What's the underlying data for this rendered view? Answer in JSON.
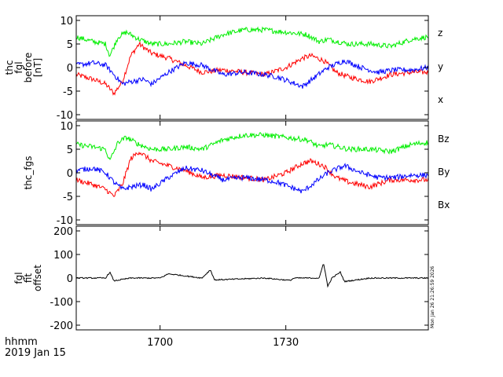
{
  "chart_data": [
    {
      "type": "line",
      "ylabel_lines": [
        "thc",
        "fgl",
        "before",
        "[nT]"
      ],
      "ylim": [
        -11,
        11
      ],
      "yticks": [
        -10,
        -5,
        0,
        5,
        10
      ],
      "xlim": [
        "16:40",
        "18:04"
      ],
      "series": [
        {
          "name": "z",
          "color": "#ff0000",
          "x": [
            "16:40",
            "16:44",
            "16:47",
            "16:49",
            "16:51",
            "16:53",
            "16:55",
            "16:58",
            "17:02",
            "17:06",
            "17:10",
            "17:15",
            "17:20",
            "17:25",
            "17:30",
            "17:34",
            "17:36",
            "17:39",
            "17:42",
            "17:45",
            "17:50",
            "17:55",
            "18:00",
            "18:04"
          ],
          "values": [
            -1.5,
            -2.5,
            -3.5,
            -5.5,
            -3.0,
            2.5,
            5.0,
            3.0,
            2.0,
            0.5,
            -1.0,
            -0.5,
            -1.0,
            -1.5,
            0.0,
            2.0,
            2.5,
            1.5,
            -1.0,
            -2.0,
            -3.0,
            -1.5,
            -1.0,
            -1.0
          ]
        },
        {
          "name": "y",
          "color": "#00ee00",
          "x": [
            "16:40",
            "16:44",
            "16:47",
            "16:48",
            "16:50",
            "16:52",
            "16:55",
            "16:58",
            "17:02",
            "17:06",
            "17:10",
            "17:15",
            "17:20",
            "17:25",
            "17:30",
            "17:35",
            "17:38",
            "17:40",
            "17:45",
            "17:50",
            "17:55",
            "18:00",
            "18:04"
          ],
          "values": [
            6.5,
            5.5,
            5.0,
            2.5,
            6.5,
            7.5,
            6.0,
            5.0,
            5.0,
            5.5,
            5.0,
            7.0,
            8.0,
            8.0,
            7.5,
            7.0,
            5.5,
            6.0,
            5.0,
            5.0,
            4.5,
            6.0,
            6.5
          ]
        },
        {
          "name": "x",
          "color": "#0000ff",
          "x": [
            "16:40",
            "16:44",
            "16:47",
            "16:49",
            "16:51",
            "16:53",
            "16:56",
            "16:58",
            "17:02",
            "17:06",
            "17:10",
            "17:15",
            "17:20",
            "17:25",
            "17:28",
            "17:31",
            "17:34",
            "17:37",
            "17:40",
            "17:44",
            "17:48",
            "17:52",
            "17:56",
            "18:00",
            "18:04"
          ],
          "values": [
            0.5,
            1.0,
            0.5,
            -1.5,
            -3.5,
            -3.0,
            -2.5,
            -3.5,
            -1.0,
            1.0,
            0.5,
            -1.5,
            -1.0,
            -1.5,
            -2.0,
            -3.0,
            -4.0,
            -2.0,
            0.0,
            1.5,
            0.0,
            -1.0,
            -0.5,
            -0.5,
            0.0
          ]
        }
      ]
    },
    {
      "type": "line",
      "ylabel_lines": [
        "thc_fgs"
      ],
      "ylim": [
        -11,
        11
      ],
      "yticks": [
        -10,
        -5,
        0,
        5,
        10
      ],
      "xlim": [
        "16:40",
        "18:04"
      ],
      "series": [
        {
          "name": "Bz",
          "color": "#ff0000",
          "x": [
            "16:40",
            "16:44",
            "16:47",
            "16:49",
            "16:51",
            "16:53",
            "16:55",
            "16:58",
            "17:02",
            "17:06",
            "17:10",
            "17:15",
            "17:20",
            "17:25",
            "17:30",
            "17:34",
            "17:36",
            "17:39",
            "17:42",
            "17:45",
            "17:50",
            "17:55",
            "18:00",
            "18:04"
          ],
          "values": [
            -1.5,
            -2.5,
            -3.5,
            -5.0,
            -2.5,
            3.0,
            4.5,
            2.5,
            1.5,
            0.5,
            -1.0,
            -0.5,
            -1.0,
            -1.5,
            0.0,
            2.0,
            2.5,
            1.5,
            -1.0,
            -2.0,
            -3.0,
            -1.5,
            -1.5,
            -1.5
          ]
        },
        {
          "name": "By",
          "color": "#00ee00",
          "x": [
            "16:40",
            "16:44",
            "16:47",
            "16:48",
            "16:50",
            "16:52",
            "16:55",
            "16:58",
            "17:02",
            "17:06",
            "17:10",
            "17:15",
            "17:20",
            "17:25",
            "17:30",
            "17:35",
            "17:38",
            "17:40",
            "17:45",
            "17:50",
            "17:55",
            "18:00",
            "18:04"
          ],
          "values": [
            6.0,
            5.5,
            5.0,
            2.5,
            6.5,
            7.5,
            6.0,
            5.0,
            5.0,
            5.5,
            5.0,
            7.0,
            8.0,
            8.0,
            7.5,
            7.0,
            5.5,
            6.0,
            5.0,
            5.0,
            4.5,
            6.0,
            6.5
          ]
        },
        {
          "name": "Bx",
          "color": "#0000ff",
          "x": [
            "16:40",
            "16:44",
            "16:47",
            "16:49",
            "16:51",
            "16:53",
            "16:56",
            "16:58",
            "17:02",
            "17:06",
            "17:10",
            "17:15",
            "17:20",
            "17:25",
            "17:28",
            "17:31",
            "17:34",
            "17:37",
            "17:40",
            "17:44",
            "17:48",
            "17:52",
            "17:56",
            "18:00",
            "18:04"
          ],
          "values": [
            0.5,
            1.0,
            0.0,
            -2.0,
            -3.5,
            -3.0,
            -2.5,
            -3.5,
            -1.0,
            1.0,
            0.5,
            -1.5,
            -1.0,
            -1.5,
            -2.0,
            -3.0,
            -4.0,
            -2.0,
            0.0,
            1.5,
            0.0,
            -1.0,
            -1.0,
            -0.5,
            -0.5
          ]
        }
      ]
    },
    {
      "type": "line",
      "ylabel_lines": [
        "fgl",
        "fit",
        "offset"
      ],
      "ylim": [
        -220,
        220
      ],
      "yticks": [
        -200,
        -100,
        0,
        100,
        200
      ],
      "xlim": [
        "16:40",
        "18:04"
      ],
      "series": [
        {
          "name": "",
          "color": "#000000",
          "x": [
            "16:40",
            "16:47",
            "16:48",
            "16:49",
            "16:53",
            "17:00",
            "17:02",
            "17:10",
            "17:12",
            "17:13",
            "17:25",
            "17:31",
            "17:32",
            "17:38",
            "17:39",
            "17:40",
            "17:41",
            "17:43",
            "17:44",
            "17:50",
            "18:04"
          ],
          "values": [
            0,
            0,
            25,
            -12,
            0,
            0,
            18,
            0,
            35,
            -8,
            0,
            -10,
            0,
            0,
            65,
            -35,
            0,
            25,
            -15,
            0,
            0
          ]
        }
      ]
    }
  ],
  "xaxis": {
    "ticks": [
      {
        "label": "1700",
        "t": "17:00"
      },
      {
        "label": "1730",
        "t": "17:30"
      }
    ],
    "row_label": "hhmm",
    "date_label": "2019 Jan 15"
  },
  "timestamp": "Mon Jan 26 21:26:59 2026"
}
